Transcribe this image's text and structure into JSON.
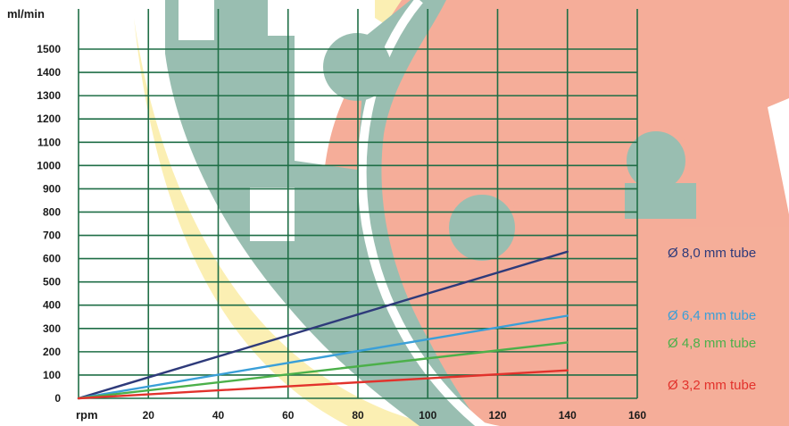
{
  "chart_data": {
    "type": "line",
    "ylabel": "ml/min",
    "xlabel": "rpm",
    "x_ticks": [
      "20",
      "40",
      "60",
      "80",
      "100",
      "120",
      "140",
      "160"
    ],
    "y_ticks": [
      "0",
      "100",
      "200",
      "300",
      "400",
      "500",
      "600",
      "700",
      "800",
      "900",
      "1000",
      "1100",
      "1200",
      "1300",
      "1400",
      "1500"
    ],
    "xlim": [
      0,
      160
    ],
    "ylim": [
      0,
      1500
    ],
    "grid": true,
    "legend_placement": "right",
    "series": [
      {
        "name": "Ø 8,0 mm tube",
        "color": "#2e3a7a",
        "x": [
          0,
          140
        ],
        "y": [
          0,
          630
        ]
      },
      {
        "name": "Ø 6,4 mm tube",
        "color": "#3a9fd8",
        "x": [
          0,
          140
        ],
        "y": [
          0,
          355
        ]
      },
      {
        "name": "Ø 4,8 mm tube",
        "color": "#4cb04a",
        "x": [
          0,
          140
        ],
        "y": [
          0,
          240
        ]
      },
      {
        "name": "Ø 3,2 mm tube",
        "color": "#e2322c",
        "x": [
          0,
          140
        ],
        "y": [
          0,
          120
        ]
      }
    ]
  },
  "colors": {
    "grid": "#1f6e46",
    "bg_salmon": "#f4a58e",
    "bg_teal": "#8fb8a9",
    "bg_yellow": "#fbeeab"
  }
}
